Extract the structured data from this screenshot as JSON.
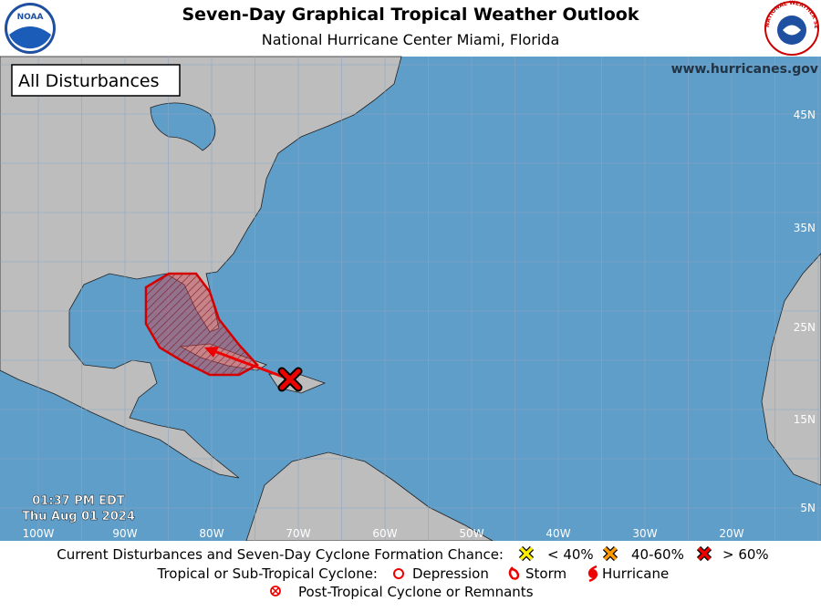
{
  "header": {
    "title": "Seven-Day Graphical Tropical Weather Outlook",
    "subtitle": "National Hurricane Center  Miami, Florida"
  },
  "logos": {
    "left": "NOAA",
    "right": "NATIONAL WEATHER SERVICE"
  },
  "map": {
    "panel_label": "All Disturbances",
    "website": "www.hurricanes.gov",
    "latitude_labels": [
      "45N",
      "35N",
      "25N",
      "15N",
      "5N"
    ],
    "longitude_labels": [
      "100W",
      "90W",
      "80W",
      "70W",
      "60W",
      "50W",
      "40W",
      "30W",
      "20W"
    ],
    "timestamp": {
      "time": "01:37 PM EDT",
      "date": "Thu Aug 01 2024"
    }
  },
  "legend": {
    "disturbances": {
      "label": "Current Disturbances and Seven-Day Cyclone Formation Chance:",
      "low": "< 40%",
      "medium": "40-60%",
      "high": "> 60%"
    },
    "cyclones": {
      "label": "Tropical or Sub-Tropical Cyclone:",
      "depression": "Depression",
      "storm": "Storm",
      "hurricane": "Hurricane"
    },
    "post_tropical": "Post-Tropical Cyclone or Remnants"
  }
}
